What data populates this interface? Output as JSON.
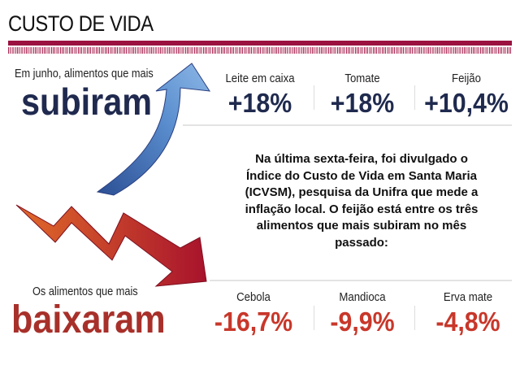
{
  "header": {
    "title": "CUSTO DE VIDA"
  },
  "up": {
    "kicker": "Em junho, alimentos que mais",
    "headline": "subiram",
    "items": [
      {
        "label": "Leite em caixa",
        "value": "+18%"
      },
      {
        "label": "Tomate",
        "value": "+18%"
      },
      {
        "label": "Feijão",
        "value": "+10,4%"
      }
    ]
  },
  "paragraph": "Na última sexta-feira, foi divulgado o Índice do Custo de Vida em Santa Maria (ICVSM), pesquisa da Unifra que mede a inflação local. O feijão está entre os três alimentos que mais subiram no mês passado:",
  "down": {
    "kicker": "Os alimentos que mais",
    "headline": "baixaram",
    "items": [
      {
        "label": "Cebola",
        "value": "-16,7%"
      },
      {
        "label": "Mandioca",
        "value": "-9,9%"
      },
      {
        "label": "Erva mate",
        "value": "-4,8%"
      }
    ]
  },
  "colors": {
    "maroon": "#9b1240",
    "navy": "#1f2a4e",
    "red": "#c8372a",
    "arrow_blue": "#4a7fc0"
  }
}
